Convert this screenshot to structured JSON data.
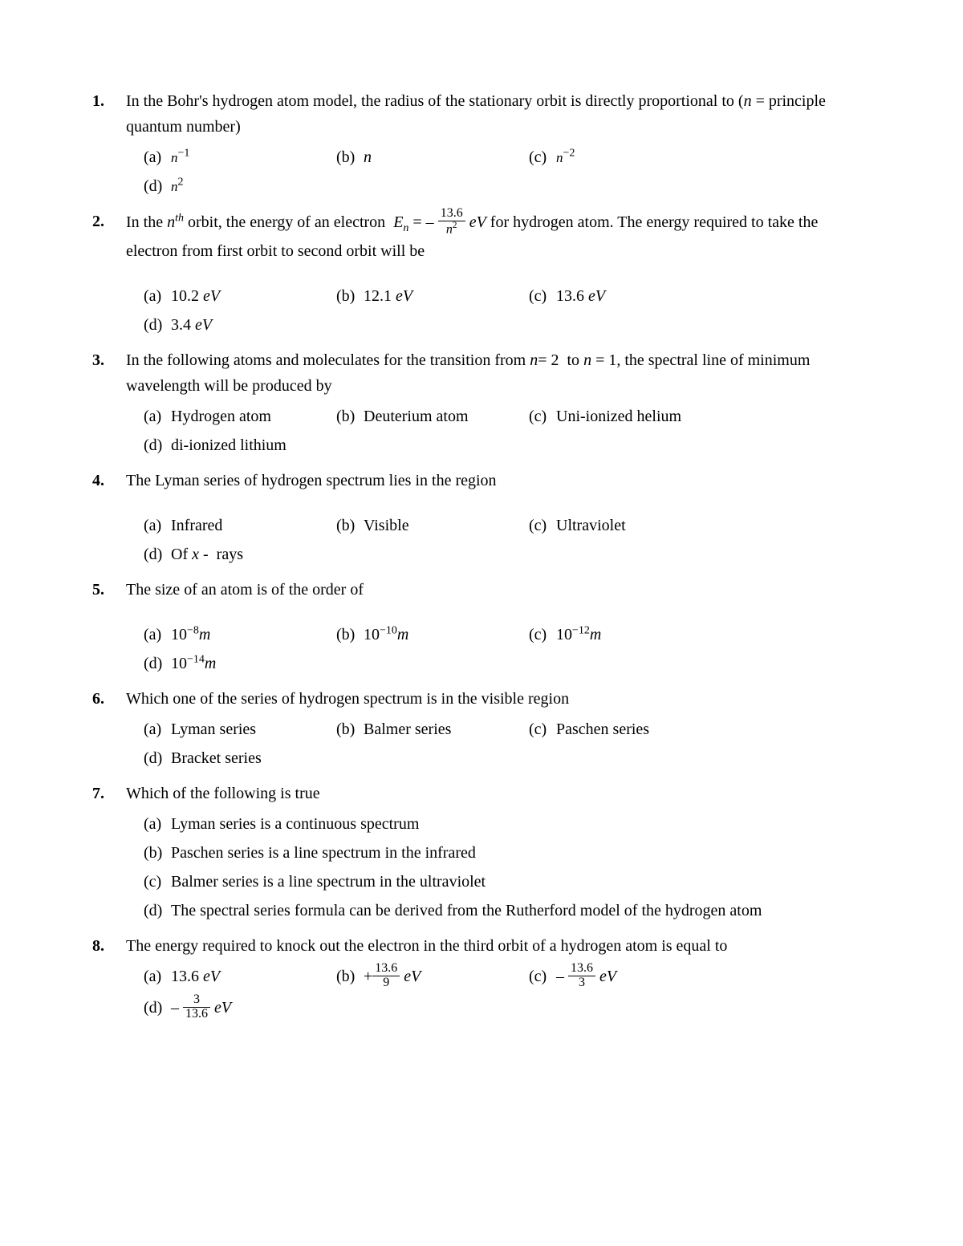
{
  "questions": [
    {
      "num": "1.",
      "text": "In the Bohr's hydrogen atom model, the radius of the stationary orbit is directly proportional to (<span class='e'>n</span> = principle quantum number)",
      "optStyle": "two-col",
      "options": [
        {
          "l": "(a)",
          "t": "<span class='mathsmall'>n</span><sup>−1</sup>"
        },
        {
          "l": "(b)",
          "t": "<span class='e'>n</span>"
        },
        {
          "l": "(c)",
          "t": "<span class='mathsmall'>n</span><sup>−2</sup>"
        },
        {
          "l": "(d)",
          "t": "<span class='mathsmall'>n</span><sup>2</sup>"
        }
      ]
    },
    {
      "num": "2.",
      "text": "In the <span class='e'>n<sup>th</sup></span> orbit, the energy of an electron&nbsp; <span class='mathE'>E<sub>n</sub></span> = –&nbsp;<span class='fr'><span class='num'>13.6</span><span class='den'><span class='e'>n</span><sup>2</sup></span></span>&nbsp;<span class='e'>eV</span> for hydrogen atom. The energy required to take the electron from first orbit to second orbit will be",
      "spacer": true,
      "optStyle": "two-col",
      "options": [
        {
          "l": "(a)",
          "t": "10.2 <span class='e'>eV</span>"
        },
        {
          "l": "(b)",
          "t": "12.1 <span class='e'>eV</span>"
        },
        {
          "l": "(c)",
          "t": "13.6 <span class='e'>eV</span>"
        },
        {
          "l": "(d)",
          "t": "3.4 <span class='e'>eV</span>"
        }
      ]
    },
    {
      "num": "3.",
      "text": "In the following atoms and moleculates for the transition from <span class='e'>n</span>= 2&nbsp; to <span class='e'>n</span> = 1, the spectral line of minimum wavelength will be produced by",
      "optStyle": "two-col",
      "options": [
        {
          "l": "(a)",
          "t": "Hydrogen atom"
        },
        {
          "l": "(b)",
          "t": "Deuterium atom"
        },
        {
          "l": "(c)",
          "t": "Uni-ionized helium"
        },
        {
          "l": "(d)",
          "t": "di-ionized lithium"
        }
      ]
    },
    {
      "num": "4.",
      "text": "The Lyman series of hydrogen spectrum lies in the region",
      "spacer": true,
      "optStyle": "two-col",
      "options": [
        {
          "l": "(a)",
          "t": "Infrared"
        },
        {
          "l": "(b)",
          "t": "Visible"
        },
        {
          "l": "(c)",
          "t": "Ultraviolet"
        },
        {
          "l": "(d)",
          "t": "Of <span class='e'>x</span> -&nbsp; rays"
        }
      ]
    },
    {
      "num": "5.",
      "text": "The size of an atom is of the order of",
      "spacer": true,
      "optStyle": "two-col",
      "options": [
        {
          "l": "(a)",
          "t": "10<sup>−8</sup><span class='e'>m</span>"
        },
        {
          "l": "(b)",
          "t": "10<sup>−10</sup><span class='e'>m</span>"
        },
        {
          "l": "(c)",
          "t": "10<sup>−12</sup><span class='e'>m</span>"
        },
        {
          "l": "(d)",
          "t": "10<sup>−14</sup><span class='e'>m</span>"
        }
      ]
    },
    {
      "num": "6.",
      "text": "Which one of the series of hydrogen spectrum is in the visible region",
      "optStyle": "two-col",
      "options": [
        {
          "l": "(a)",
          "t": "Lyman series"
        },
        {
          "l": "(b)",
          "t": "Balmer series"
        },
        {
          "l": "(c)",
          "t": "Paschen series"
        },
        {
          "l": "(d)",
          "t": "Bracket series"
        }
      ]
    },
    {
      "num": "7.",
      "text": "Which of the following is true",
      "optStyle": "full",
      "options": [
        {
          "l": "(a)",
          "t": "Lyman series is a continuous spectrum"
        },
        {
          "l": "(b)",
          "t": "Paschen series is a line spectrum in the infrared"
        },
        {
          "l": "(c)",
          "t": "Balmer series is a line spectrum in the ultraviolet"
        },
        {
          "l": "(d)",
          "t": "The spectral series formula can be derived from the Rutherford model of the hydrogen atom"
        }
      ]
    },
    {
      "num": "8.",
      "text": "The energy required to knock out the electron in the third orbit of a hydrogen atom is equal to",
      "optStyle": "two-col",
      "options": [
        {
          "l": "(a)",
          "t": "13.6 <span class='e'>eV</span>"
        },
        {
          "l": "(b)",
          "t": "+<span class='fr'><span class='num'>13.6</span><span class='den'>9</span></span> <span class='e'>eV</span>"
        },
        {
          "l": "(c)",
          "t": "–&nbsp;<span class='fr'><span class='num'>13.6</span><span class='den'>3</span></span> <span class='e'>eV</span>"
        },
        {
          "l": "(d)",
          "t": "–&nbsp;<span class='fr'><span class='num'>3</span><span class='den'>13.6</span></span> <span class='e'>eV</span>"
        }
      ]
    }
  ]
}
